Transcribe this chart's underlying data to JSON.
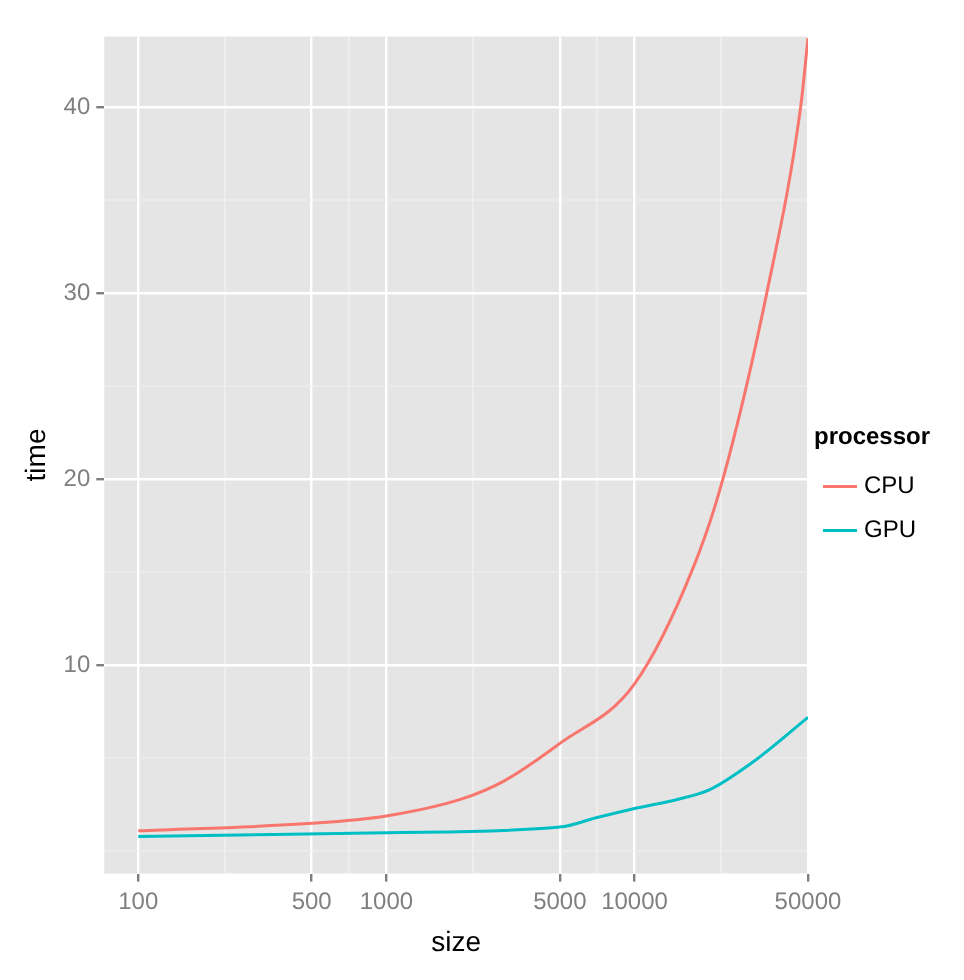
{
  "chart_data": {
    "type": "line",
    "xlabel": "size",
    "ylabel": "time",
    "legend_title": "processor",
    "legend": "right",
    "grid": true,
    "log": "x",
    "marker": "none",
    "line_style": "solid",
    "xlim": [
      73,
      50000
    ],
    "ylim": [
      -1.2,
      43.8
    ],
    "xticks": [
      100,
      {
        "value": 224,
        "label": null
      },
      500,
      {
        "value": 707,
        "label": null
      },
      1000,
      {
        "value": 2236,
        "label": null
      },
      5000,
      {
        "value": 7071,
        "label": null
      },
      10000,
      {
        "value": 22361,
        "label": null
      },
      50000
    ],
    "yticks": [
      {
        "value": 0,
        "label": null
      },
      {
        "value": 5,
        "label": null
      },
      10,
      {
        "value": 15,
        "label": null
      },
      20,
      {
        "value": 25,
        "label": null
      },
      30,
      {
        "value": 35,
        "label": null
      },
      40
    ],
    "series": [
      {
        "name": "CPU",
        "color": "#f8766d",
        "x": [
          100,
          500,
          1000,
          2000,
          3000,
          5000,
          10000,
          17300,
          22700,
          34100,
          46700,
          50000
        ],
        "values": [
          1.1,
          1.5,
          1.9,
          2.8,
          3.8,
          5.8,
          9.0,
          15.3,
          20,
          30,
          40,
          43.7
        ]
      },
      {
        "name": "GPU",
        "color": "#00bfc4",
        "x": [
          100,
          1000,
          5000,
          7000,
          10000,
          15000,
          20000,
          30000,
          50000
        ],
        "values": [
          0.8,
          1.0,
          1.3,
          1.8,
          2.3,
          2.8,
          3.3,
          4.8,
          7.2
        ]
      }
    ]
  }
}
